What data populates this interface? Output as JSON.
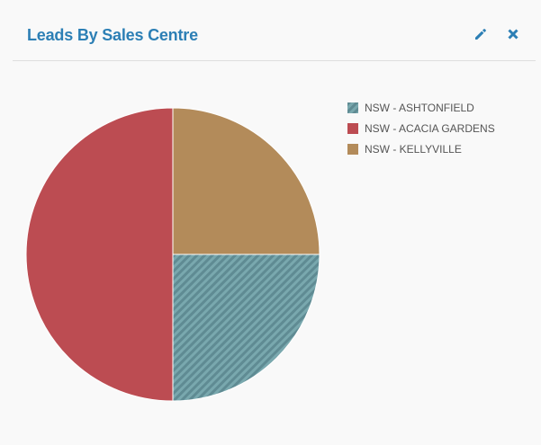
{
  "widget": {
    "title": "Leads By Sales Centre",
    "tools": {
      "edit_icon": "pencil-icon",
      "close_icon": "close-icon",
      "color": "#2c7fb5"
    }
  },
  "chart_data": {
    "type": "pie",
    "title": "",
    "legend_position": "top-right",
    "categories": [
      "NSW - ASHTONFIELD",
      "NSW - ACACIA GARDENS",
      "NSW - KELLYVILLE"
    ],
    "values": [
      25,
      50,
      25
    ],
    "colors": [
      "#6b9aa1",
      "#bc4c52",
      "#b38b5a"
    ],
    "patterns": [
      "diagonal-stripes",
      "solid",
      "solid"
    ],
    "slice_order_clockwise_from_top": [
      "NSW - KELLYVILLE",
      "NSW - ASHTONFIELD",
      "NSW - ACACIA GARDENS"
    ]
  }
}
